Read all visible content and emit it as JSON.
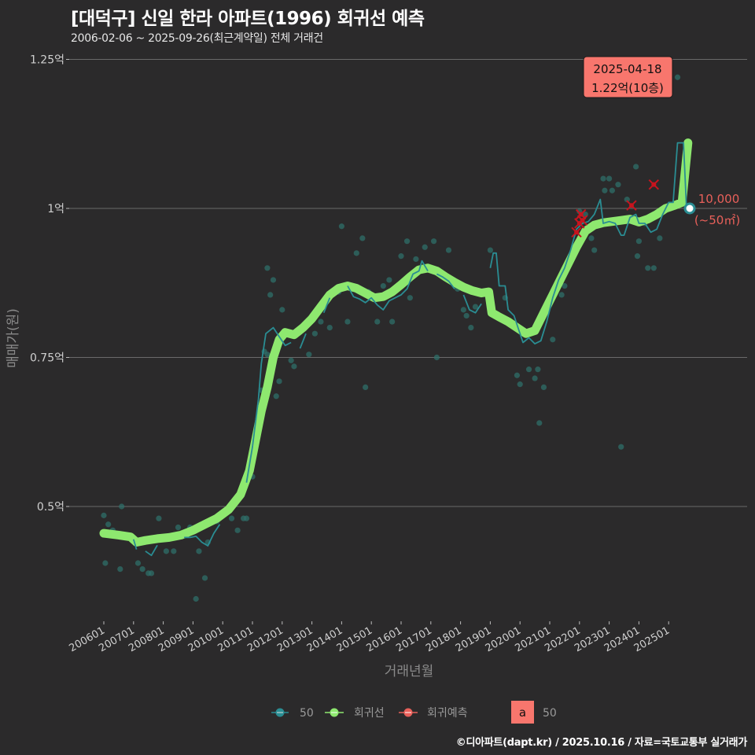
{
  "header": {
    "title": "[대덕구] 신일 한라 아파트(1996) 회귀선 예측",
    "subtitle": "2006-02-06 ~ 2025-09-26(최근계약일) 전체 거래건"
  },
  "footer": {
    "credit": "©디아파트(dapt.kr) / 2025.10.16 / 자료=국토교통부 실거래가"
  },
  "callout": {
    "date": "2025-04-18",
    "price": "1.22억(10층)"
  },
  "end_label": {
    "value": "10,000",
    "area": "(~50㎡)"
  },
  "legend": {
    "items": [
      {
        "label": "50",
        "color": "#2a8d93"
      },
      {
        "label": "회귀선",
        "color": "#8ee86f"
      },
      {
        "label": "회귀예측",
        "color": "#e8605a"
      }
    ],
    "text_key": {
      "glyph": "a",
      "label": "50",
      "color": "#f8766d"
    }
  },
  "colors": {
    "background": "#2b2a2b",
    "monthly_line": "#2a8d93",
    "regression": "#8ee86f",
    "prediction": "#c8141e",
    "scatter": "#2f6f6a",
    "callout_bg": "#f8766d",
    "grid": "#6a6a6a"
  },
  "chart_data": {
    "type": "line",
    "title": "[대덕구] 신일 한라 아파트(1996) 회귀선 예측",
    "subtitle": "2006-02-06 ~ 2025-09-26(최근계약일) 전체 거래건",
    "xlabel": "거래년월",
    "ylabel": "매매가(원)",
    "ylim": [
      0.3,
      1.3
    ],
    "yticks": [
      {
        "value": 0.5,
        "label": "0.5억"
      },
      {
        "value": 0.75,
        "label": "0.75억"
      },
      {
        "value": 1.0,
        "label": "1억"
      },
      {
        "value": 1.25,
        "label": "1.25억"
      }
    ],
    "xticks": [
      "200601",
      "200701",
      "200801",
      "200901",
      "201001",
      "201101",
      "201201",
      "201301",
      "201401",
      "201501",
      "201601",
      "201701",
      "201801",
      "201901",
      "202001",
      "202101",
      "202201",
      "202301",
      "202401",
      "202501"
    ],
    "grid": true,
    "legend_position": "bottom",
    "series": [
      {
        "name": "회귀선",
        "type": "line",
        "points": [
          [
            2006.0,
            0.455
          ],
          [
            2006.5,
            0.452
          ],
          [
            2006.9,
            0.449
          ],
          [
            2007.1,
            0.44
          ],
          [
            2007.4,
            0.443
          ],
          [
            2007.8,
            0.446
          ],
          [
            2008.2,
            0.448
          ],
          [
            2008.6,
            0.452
          ],
          [
            2009.0,
            0.46
          ],
          [
            2009.4,
            0.47
          ],
          [
            2009.8,
            0.48
          ],
          [
            2010.2,
            0.495
          ],
          [
            2010.6,
            0.52
          ],
          [
            2010.9,
            0.56
          ],
          [
            2011.1,
            0.61
          ],
          [
            2011.3,
            0.66
          ],
          [
            2011.5,
            0.7
          ],
          [
            2011.7,
            0.75
          ],
          [
            2011.9,
            0.78
          ],
          [
            2012.1,
            0.792
          ],
          [
            2012.4,
            0.788
          ],
          [
            2012.7,
            0.8
          ],
          [
            2013.0,
            0.815
          ],
          [
            2013.3,
            0.835
          ],
          [
            2013.6,
            0.855
          ],
          [
            2013.9,
            0.866
          ],
          [
            2014.2,
            0.87
          ],
          [
            2014.5,
            0.866
          ],
          [
            2014.8,
            0.858
          ],
          [
            2015.1,
            0.85
          ],
          [
            2015.4,
            0.852
          ],
          [
            2015.7,
            0.86
          ],
          [
            2016.0,
            0.872
          ],
          [
            2016.3,
            0.885
          ],
          [
            2016.6,
            0.897
          ],
          [
            2016.9,
            0.9
          ],
          [
            2017.2,
            0.895
          ],
          [
            2017.5,
            0.885
          ],
          [
            2017.8,
            0.876
          ],
          [
            2018.1,
            0.868
          ],
          [
            2018.4,
            0.862
          ],
          [
            2018.7,
            0.858
          ],
          [
            2018.95,
            0.86
          ],
          [
            2019.05,
            0.825
          ],
          [
            2019.3,
            0.818
          ],
          [
            2019.6,
            0.81
          ],
          [
            2019.9,
            0.8
          ],
          [
            2020.2,
            0.79
          ],
          [
            2020.5,
            0.795
          ],
          [
            2020.8,
            0.825
          ],
          [
            2021.1,
            0.855
          ],
          [
            2021.4,
            0.885
          ],
          [
            2021.7,
            0.915
          ],
          [
            2021.9,
            0.935
          ],
          [
            2022.2,
            0.962
          ],
          [
            2022.5,
            0.972
          ],
          [
            2022.8,
            0.976
          ],
          [
            2023.1,
            0.978
          ],
          [
            2023.4,
            0.98
          ],
          [
            2023.7,
            0.982
          ],
          [
            2024.0,
            0.977
          ],
          [
            2024.3,
            0.982
          ],
          [
            2024.6,
            0.99
          ],
          [
            2024.9,
            1.0
          ],
          [
            2025.2,
            1.005
          ],
          [
            2025.45,
            1.01
          ],
          [
            2025.55,
            1.06
          ],
          [
            2025.65,
            1.11
          ]
        ]
      },
      {
        "name": "50",
        "type": "line",
        "points": [
          [
            2006.1,
            0.45
          ],
          [
            2006.4,
            0.448
          ],
          [
            2006.7,
            0.448
          ],
          [
            2007.0,
            0.445
          ],
          [
            2007.1,
            0.428
          ],
          [
            2007.4,
            0.425
          ],
          [
            2007.6,
            0.418
          ],
          [
            2007.8,
            0.435
          ],
          [
            2008.1,
            0.445
          ],
          [
            2008.4,
            0.45
          ],
          [
            2008.7,
            0.448
          ],
          [
            2008.9,
            0.448
          ],
          [
            2009.1,
            0.45
          ],
          [
            2009.3,
            0.44
          ],
          [
            2009.5,
            0.434
          ],
          [
            2009.7,
            0.455
          ],
          [
            2009.9,
            0.47
          ],
          [
            2010.2,
            0.485
          ],
          [
            2010.5,
            0.51
          ],
          [
            2010.8,
            0.54
          ],
          [
            2011.0,
            0.6
          ],
          [
            2011.2,
            0.68
          ],
          [
            2011.3,
            0.74
          ],
          [
            2011.45,
            0.79
          ],
          [
            2011.7,
            0.8
          ],
          [
            2011.9,
            0.785
          ],
          [
            2012.1,
            0.77
          ],
          [
            2012.3,
            0.775
          ],
          [
            2012.6,
            0.765
          ],
          [
            2012.8,
            0.79
          ],
          [
            2013.1,
            0.8
          ],
          [
            2013.4,
            0.825
          ],
          [
            2013.6,
            0.85
          ],
          [
            2013.9,
            0.86
          ],
          [
            2014.2,
            0.87
          ],
          [
            2014.4,
            0.852
          ],
          [
            2014.6,
            0.848
          ],
          [
            2014.8,
            0.842
          ],
          [
            2015.0,
            0.85
          ],
          [
            2015.2,
            0.838
          ],
          [
            2015.4,
            0.83
          ],
          [
            2015.6,
            0.845
          ],
          [
            2015.8,
            0.85
          ],
          [
            2016.0,
            0.855
          ],
          [
            2016.2,
            0.865
          ],
          [
            2016.4,
            0.89
          ],
          [
            2016.6,
            0.895
          ],
          [
            2016.7,
            0.912
          ],
          [
            2016.9,
            0.895
          ],
          [
            2017.2,
            0.89
          ],
          [
            2017.4,
            0.885
          ],
          [
            2017.6,
            0.878
          ],
          [
            2017.8,
            0.865
          ],
          [
            2018.1,
            0.855
          ],
          [
            2018.3,
            0.83
          ],
          [
            2018.5,
            0.825
          ],
          [
            2018.7,
            0.84
          ],
          [
            2019.0,
            0.9
          ],
          [
            2019.1,
            0.925
          ],
          [
            2019.2,
            0.925
          ],
          [
            2019.3,
            0.87
          ],
          [
            2019.5,
            0.87
          ],
          [
            2019.6,
            0.83
          ],
          [
            2019.8,
            0.82
          ],
          [
            2020.0,
            0.79
          ],
          [
            2020.1,
            0.775
          ],
          [
            2020.3,
            0.783
          ],
          [
            2020.5,
            0.773
          ],
          [
            2020.7,
            0.778
          ],
          [
            2020.9,
            0.81
          ],
          [
            2021.1,
            0.85
          ],
          [
            2021.3,
            0.88
          ],
          [
            2021.5,
            0.9
          ],
          [
            2021.7,
            0.93
          ],
          [
            2021.9,
            0.965
          ],
          [
            2022.1,
            0.975
          ],
          [
            2022.3,
            0.978
          ],
          [
            2022.5,
            0.99
          ],
          [
            2022.7,
            1.015
          ],
          [
            2022.8,
            0.975
          ],
          [
            2023.0,
            0.978
          ],
          [
            2023.2,
            0.975
          ],
          [
            2023.4,
            0.955
          ],
          [
            2023.5,
            0.955
          ],
          [
            2023.7,
            0.985
          ],
          [
            2023.9,
            0.99
          ],
          [
            2024.0,
            0.975
          ],
          [
            2024.2,
            0.975
          ],
          [
            2024.4,
            0.96
          ],
          [
            2024.6,
            0.965
          ],
          [
            2024.8,
            0.99
          ],
          [
            2025.0,
            1.01
          ],
          [
            2025.15,
            1.01
          ],
          [
            2025.3,
            1.11
          ],
          [
            2025.5,
            1.11
          ],
          [
            2025.6,
            1.0
          ]
        ]
      },
      {
        "name": "회귀예측",
        "type": "scatter",
        "marker": "x",
        "points": [
          [
            2021.9,
            0.96
          ],
          [
            2022.0,
            0.975
          ],
          [
            2022.05,
            0.99
          ],
          [
            2022.1,
            0.98
          ],
          [
            2023.75,
            1.005
          ],
          [
            2024.5,
            1.04
          ]
        ]
      },
      {
        "name": "거래건",
        "type": "scatter",
        "points": [
          [
            2006.0,
            0.485
          ],
          [
            2006.15,
            0.47
          ],
          [
            2006.3,
            0.46
          ],
          [
            2006.05,
            0.405
          ],
          [
            2006.55,
            0.395
          ],
          [
            2006.6,
            0.5
          ],
          [
            2007.15,
            0.405
          ],
          [
            2007.3,
            0.395
          ],
          [
            2007.5,
            0.388
          ],
          [
            2007.6,
            0.388
          ],
          [
            2007.85,
            0.48
          ],
          [
            2008.1,
            0.425
          ],
          [
            2008.35,
            0.425
          ],
          [
            2008.5,
            0.465
          ],
          [
            2008.9,
            0.465
          ],
          [
            2009.1,
            0.345
          ],
          [
            2009.2,
            0.425
          ],
          [
            2009.4,
            0.38
          ],
          [
            2009.5,
            0.44
          ],
          [
            2009.8,
            0.475
          ],
          [
            2010.1,
            0.49
          ],
          [
            2010.3,
            0.48
          ],
          [
            2010.5,
            0.46
          ],
          [
            2010.7,
            0.48
          ],
          [
            2010.8,
            0.48
          ],
          [
            2011.0,
            0.55
          ],
          [
            2011.2,
            0.64
          ],
          [
            2011.3,
            0.695
          ],
          [
            2011.4,
            0.76
          ],
          [
            2011.5,
            0.755
          ],
          [
            2011.6,
            0.855
          ],
          [
            2011.7,
            0.88
          ],
          [
            2011.5,
            0.9
          ],
          [
            2011.8,
            0.685
          ],
          [
            2011.9,
            0.71
          ],
          [
            2012.0,
            0.83
          ],
          [
            2012.3,
            0.745
          ],
          [
            2012.4,
            0.735
          ],
          [
            2012.9,
            0.755
          ],
          [
            2013.1,
            0.79
          ],
          [
            2013.3,
            0.81
          ],
          [
            2013.6,
            0.8
          ],
          [
            2013.9,
            0.86
          ],
          [
            2014.0,
            0.97
          ],
          [
            2014.2,
            0.81
          ],
          [
            2014.5,
            0.925
          ],
          [
            2014.7,
            0.95
          ],
          [
            2014.8,
            0.7
          ],
          [
            2014.9,
            0.86
          ],
          [
            2015.2,
            0.81
          ],
          [
            2015.4,
            0.87
          ],
          [
            2015.6,
            0.88
          ],
          [
            2015.7,
            0.81
          ],
          [
            2016.0,
            0.92
          ],
          [
            2016.2,
            0.945
          ],
          [
            2016.3,
            0.85
          ],
          [
            2016.5,
            0.915
          ],
          [
            2016.8,
            0.935
          ],
          [
            2017.1,
            0.945
          ],
          [
            2017.2,
            0.75
          ],
          [
            2017.6,
            0.93
          ],
          [
            2017.9,
            0.865
          ],
          [
            2018.1,
            0.83
          ],
          [
            2018.2,
            0.82
          ],
          [
            2018.35,
            0.8
          ],
          [
            2018.5,
            0.835
          ],
          [
            2019.0,
            0.93
          ],
          [
            2019.5,
            0.85
          ],
          [
            2019.9,
            0.72
          ],
          [
            2020.0,
            0.705
          ],
          [
            2020.3,
            0.73
          ],
          [
            2020.5,
            0.715
          ],
          [
            2020.6,
            0.73
          ],
          [
            2020.65,
            0.64
          ],
          [
            2020.8,
            0.7
          ],
          [
            2021.1,
            0.78
          ],
          [
            2021.4,
            0.855
          ],
          [
            2021.5,
            0.87
          ],
          [
            2021.6,
            0.9
          ],
          [
            2021.7,
            0.92
          ],
          [
            2022.0,
            0.995
          ],
          [
            2022.2,
            0.99
          ],
          [
            2022.4,
            0.95
          ],
          [
            2022.5,
            0.93
          ],
          [
            2022.8,
            1.05
          ],
          [
            2022.85,
            1.03
          ],
          [
            2023.0,
            1.05
          ],
          [
            2023.1,
            1.03
          ],
          [
            2023.3,
            1.04
          ],
          [
            2023.4,
            0.6
          ],
          [
            2023.6,
            1.015
          ],
          [
            2023.9,
            1.07
          ],
          [
            2023.95,
            0.92
          ],
          [
            2024.3,
            0.9
          ],
          [
            2024.5,
            0.9
          ],
          [
            2024.7,
            0.95
          ],
          [
            2025.3,
            1.22
          ],
          [
            2024.0,
            0.945
          ],
          [
            2023.7,
            0.98
          ],
          [
            2024.2,
            0.975
          ]
        ]
      }
    ],
    "annotations": [
      {
        "text": "2025-04-18 1.22억(10층)",
        "x": 2025.3,
        "y": 1.22
      },
      {
        "text": "10,000 (~50㎡)",
        "x": 2025.6,
        "y": 1.0
      }
    ]
  }
}
